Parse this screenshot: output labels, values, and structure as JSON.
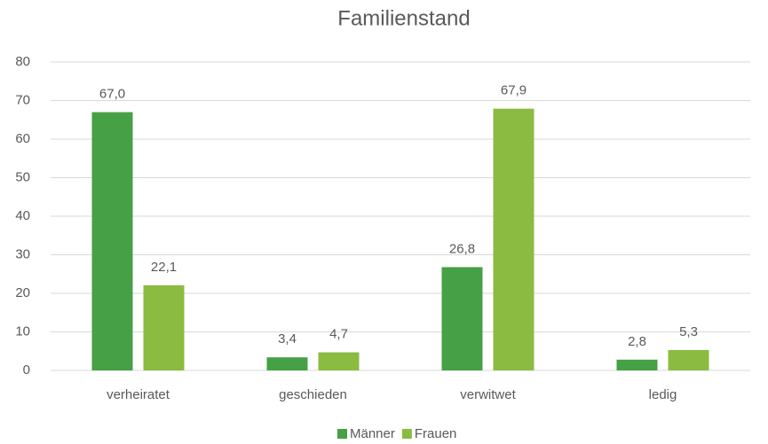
{
  "chart_data": {
    "type": "bar",
    "title": "Familienstand",
    "categories": [
      "verheiratet",
      "geschieden",
      "verwitwet",
      "ledig"
    ],
    "series": [
      {
        "name": "Männer",
        "color": "#46a046",
        "values": [
          67.0,
          3.4,
          26.8,
          2.8
        ],
        "value_labels": [
          "67,0",
          "3,4",
          "26,8",
          "2,8"
        ]
      },
      {
        "name": "Frauen",
        "color": "#8cbb41",
        "values": [
          22.1,
          4.7,
          67.9,
          5.3
        ],
        "value_labels": [
          "22,1",
          "4,7",
          "67,9",
          "5,3"
        ]
      }
    ],
    "ylim": [
      0,
      80
    ],
    "yticks": [
      0,
      10,
      20,
      30,
      40,
      50,
      60,
      70,
      80
    ],
    "grid": true,
    "legend": "bottom"
  }
}
